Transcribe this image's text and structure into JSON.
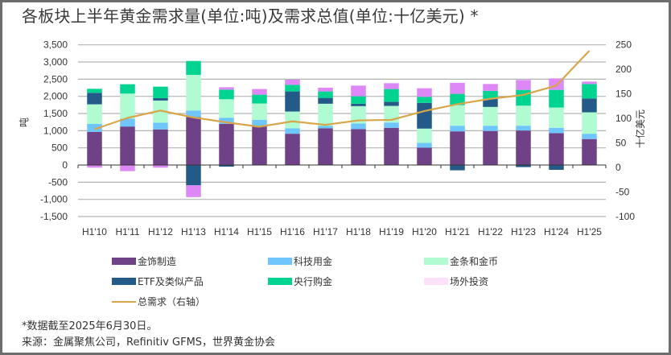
{
  "title": "各板块上半年黄金需求量(单位:吨)及需求总值(单位:十亿美元) *",
  "footer": {
    "note": "*数据截至2025年6月30日。",
    "source": "来源：金属聚焦公司，Refinitiv GFMS，世界黄金协会"
  },
  "colors": {
    "jewellery": "#6f4287",
    "technology": "#6ec6fc",
    "bar_coin": "#b0fbd2",
    "etf": "#245a87",
    "central_bank": "#00d490",
    "otc": "#dd88f6",
    "otc_legend": "#fde1fb",
    "total": "#d8a64a",
    "grid": "#b3b3b3",
    "axis": "#333333"
  },
  "legend": [
    {
      "key": "jewellery",
      "label": "金饰制造",
      "kind": "box"
    },
    {
      "key": "technology",
      "label": "科技用金",
      "kind": "box"
    },
    {
      "key": "bar_coin",
      "label": "金条和金币",
      "kind": "box"
    },
    {
      "key": "etf",
      "label": "ETF及类似产品",
      "kind": "box"
    },
    {
      "key": "central_bank",
      "label": "央行购金",
      "kind": "box"
    },
    {
      "key": "otc",
      "label": "场外投资",
      "kind": "box"
    },
    {
      "key": "total",
      "label": "总需求（右轴）",
      "kind": "line"
    }
  ],
  "chart_data": {
    "type": "bar",
    "stacked": true,
    "title": "各板块上半年黄金需求量(单位:吨)及需求总值(单位:十亿美元) *",
    "xlabel": "",
    "ylabel": "吨",
    "y2label": "十亿美元",
    "ylim": [
      -1500,
      3500
    ],
    "y2lim": [
      -100,
      250
    ],
    "yticks": [
      "3,500",
      "3,000",
      "2,500",
      "2,000",
      "1,500",
      "1,000",
      "500",
      "0",
      "-500",
      "-1,000",
      "-1,500"
    ],
    "ytick_values": [
      3500,
      3000,
      2500,
      2000,
      1500,
      1000,
      500,
      0,
      -500,
      -1000,
      -1500
    ],
    "y2ticks": [
      "250",
      "200",
      "150",
      "100",
      "50",
      "0",
      "-50",
      "-100"
    ],
    "y2tick_values": [
      250,
      200,
      150,
      100,
      50,
      0,
      -50,
      -100
    ],
    "grid": true,
    "legend_position": "bottom",
    "categories": [
      "H1'10",
      "H1'11",
      "H1'12",
      "H1'13",
      "H1'14",
      "H1'15",
      "H1'16",
      "H1'17",
      "H1'18",
      "H1'19",
      "H1'20",
      "H1'21",
      "H1'22",
      "H1'23",
      "H1'24",
      "H1'25"
    ],
    "series": [
      {
        "key": "jewellery",
        "name": "金饰制造",
        "axis": "left",
        "type": "bar",
        "values": [
          967,
          1122,
          1037,
          1395,
          1200,
          1138,
          911,
          1068,
          1044,
          1084,
          507,
          981,
          991,
          1005,
          928,
          757
        ]
      },
      {
        "key": "technology",
        "name": "科技用金",
        "axis": "left",
        "type": "bar",
        "values": [
          233,
          226,
          194,
          194,
          179,
          180,
          157,
          77,
          164,
          154,
          140,
          164,
          154,
          140,
          156,
          154
        ]
      },
      {
        "key": "bar_coin",
        "name": "金条和金币",
        "axis": "left",
        "type": "bar",
        "values": [
          568,
          732,
          647,
          1037,
          537,
          474,
          490,
          640,
          507,
          484,
          414,
          600,
          547,
          584,
          591,
          624
        ]
      },
      {
        "key": "etf",
        "name": "ETF及类似产品",
        "axis": "left",
        "type": "bar",
        "values": [
          335,
          0,
          70,
          -591,
          -47,
          0,
          585,
          170,
          70,
          117,
          747,
          -154,
          233,
          -61,
          -140,
          404
        ]
      },
      {
        "key": "central_bank",
        "name": "央行购金",
        "axis": "left",
        "type": "bar",
        "values": [
          117,
          273,
          335,
          404,
          280,
          257,
          194,
          188,
          218,
          374,
          178,
          328,
          234,
          460,
          514,
          421
        ]
      },
      {
        "key": "otc",
        "name": "场外投资",
        "axis": "left",
        "type": "bar",
        "values": [
          -77,
          -178,
          -77,
          -343,
          70,
          164,
          149,
          109,
          310,
          170,
          250,
          320,
          201,
          288,
          334,
          70
        ]
      },
      {
        "key": "total",
        "name": "总需求（右轴）",
        "axis": "right",
        "type": "line",
        "values": [
          78,
          101,
          116,
          102,
          92,
          83,
          94,
          87,
          96,
          97,
          115,
          129,
          140,
          148,
          167,
          238
        ]
      }
    ]
  }
}
